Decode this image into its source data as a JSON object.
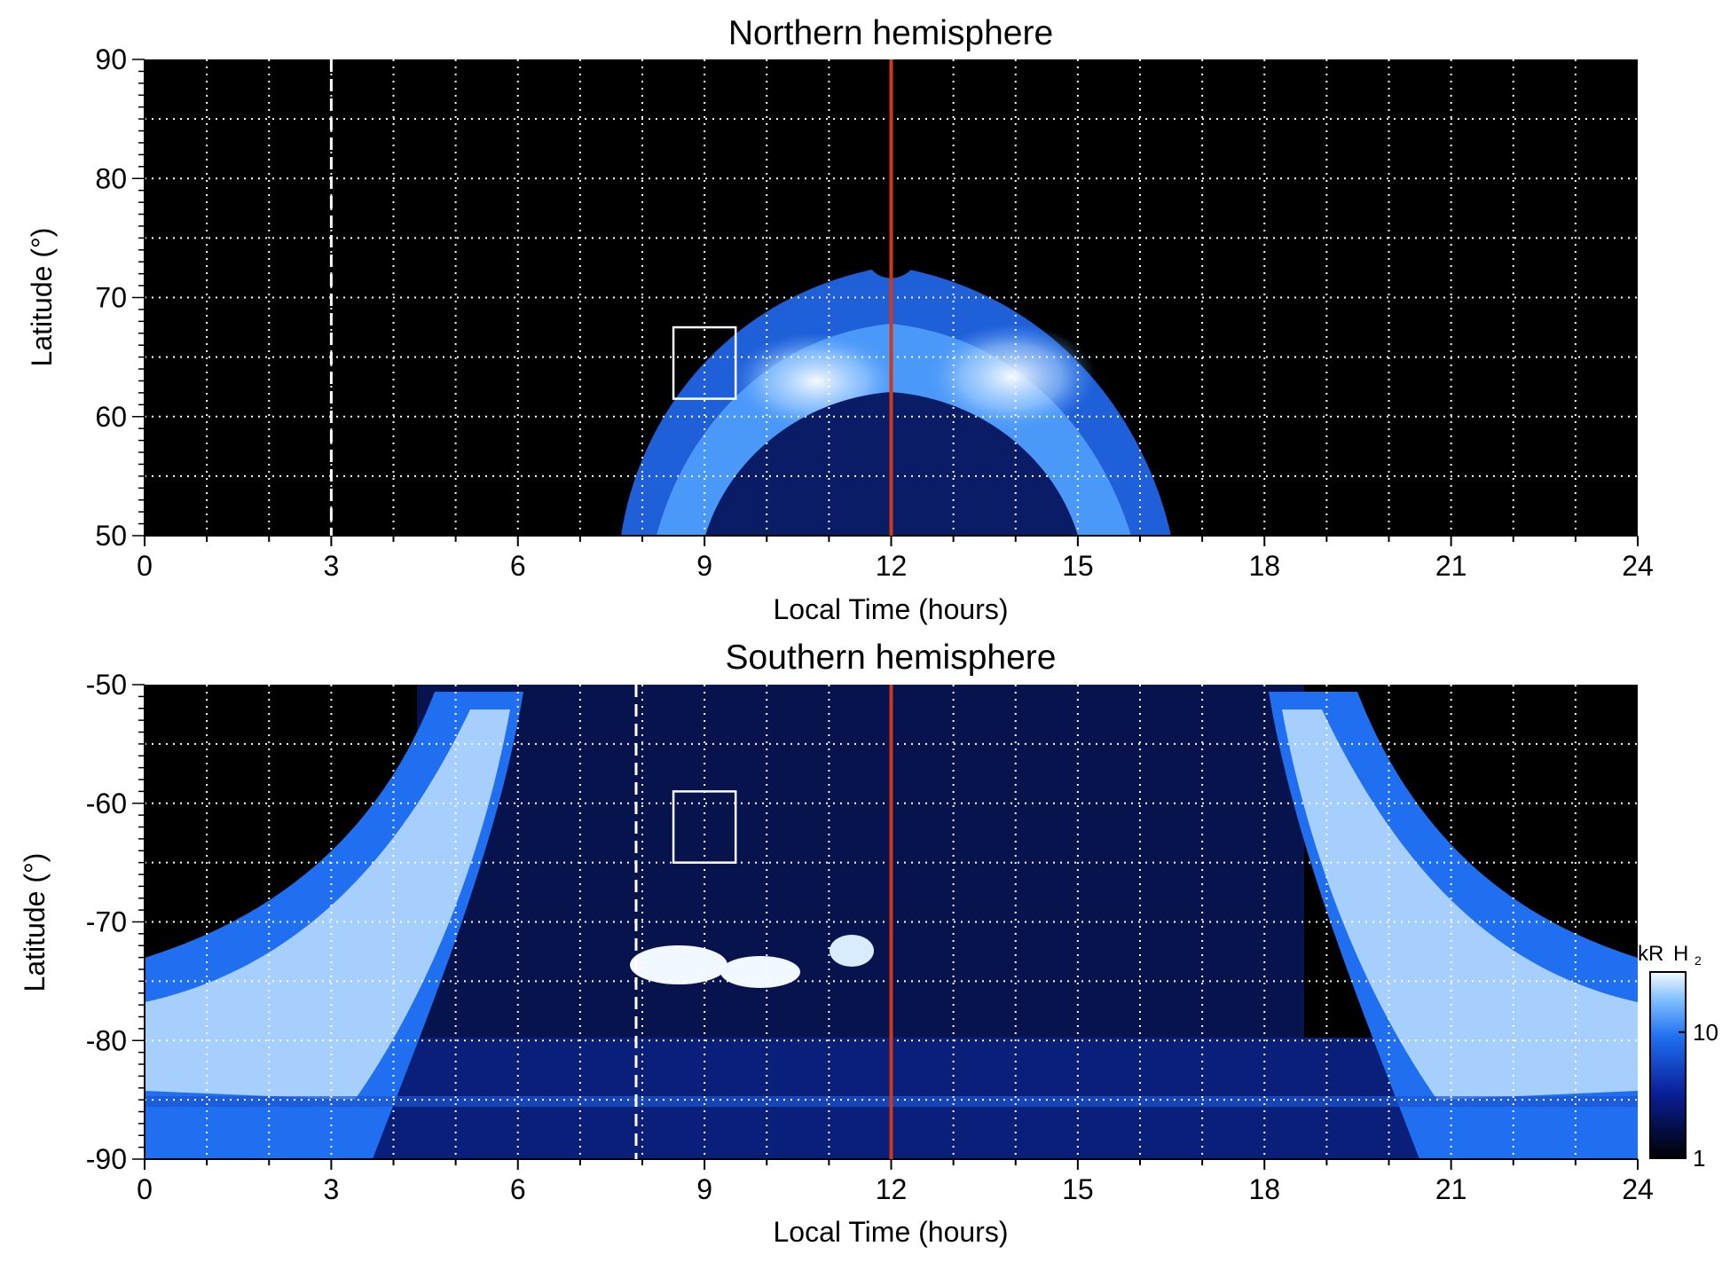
{
  "chart_data": [
    {
      "type": "heatmap",
      "title": "Northern hemisphere",
      "xlabel": "Local Time (hours)",
      "ylabel": "Latitude (°)",
      "xlim": [
        0,
        24
      ],
      "ylim": [
        50,
        90
      ],
      "x_ticks": [
        0,
        3,
        6,
        9,
        12,
        15,
        18,
        21,
        24
      ],
      "y_ticks": [
        50,
        60,
        70,
        80,
        90
      ],
      "grid": true,
      "vertical_lines": [
        {
          "x": 3.0,
          "style": "dashed",
          "color": "#ffffff"
        },
        {
          "x": 12.0,
          "style": "solid",
          "color": "#cc3a1a"
        }
      ],
      "box": {
        "x": [
          8.5,
          9.5
        ],
        "y": [
          61.5,
          67.5
        ]
      },
      "auroral_oval": {
        "x_range": [
          7.8,
          16.5
        ],
        "peak_latitude_at_noon": 62,
        "outer_latitude_at_noon": 72,
        "bright_spots_hours": [
          10.7,
          13.8
        ]
      }
    },
    {
      "type": "heatmap",
      "title": "Southern hemisphere",
      "xlabel": "Local Time (hours)",
      "ylabel": "Latitude (°)",
      "xlim": [
        0,
        24
      ],
      "ylim": [
        -90,
        -50
      ],
      "x_ticks": [
        0,
        3,
        6,
        9,
        12,
        15,
        18,
        21,
        24
      ],
      "y_ticks": [
        -50,
        -60,
        -70,
        -80,
        -90
      ],
      "grid": true,
      "vertical_lines": [
        {
          "x": 7.9,
          "style": "dashed",
          "color": "#ffffff"
        },
        {
          "x": 12.0,
          "style": "solid",
          "color": "#cc3a1a"
        }
      ],
      "box": {
        "x": [
          8.5,
          9.5
        ],
        "y": [
          -65,
          -59
        ]
      },
      "auroral_oval": {
        "dawn_arc_hours": [
          0,
          6
        ],
        "dusk_arc_hours": [
          18.2,
          24
        ],
        "bright_spots": [
          [
            8.5,
            -74
          ],
          [
            9.7,
            -74.5
          ],
          [
            11.4,
            -73
          ]
        ]
      },
      "colorbar": {
        "label_unit": "kR",
        "label_species": "H",
        "label_subscript": "2",
        "scale": "log",
        "ticks": [
          "10",
          "1"
        ],
        "tick_values": [
          10,
          1
        ],
        "range": [
          1,
          30
        ]
      }
    }
  ]
}
